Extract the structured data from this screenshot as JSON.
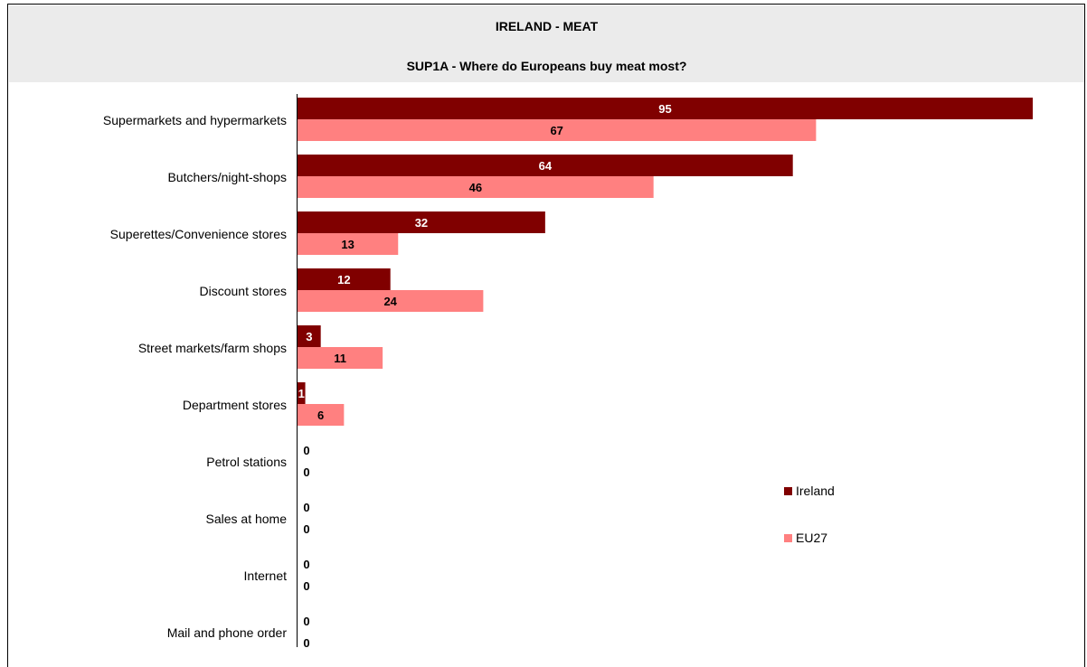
{
  "header": {
    "title": "IRELAND - MEAT",
    "subtitle": "SUP1A - Where do Europeans buy meat most?"
  },
  "chart_data": {
    "type": "bar",
    "orientation": "horizontal",
    "title": "IRELAND - MEAT",
    "subtitle": "SUP1A - Where do Europeans buy meat most?",
    "categories": [
      "Supermarkets and hypermarkets",
      "Butchers/night-shops",
      "Superettes/Convenience stores",
      "Discount stores",
      "Street markets/farm shops",
      "Department stores",
      "Petrol stations",
      "Sales at home",
      "Internet",
      "Mail and phone order"
    ],
    "series": [
      {
        "name": "Ireland",
        "color": "#800000",
        "values": [
          95,
          64,
          32,
          12,
          3,
          1,
          0,
          0,
          0,
          0
        ]
      },
      {
        "name": "EU27",
        "color": "#ff8080",
        "values": [
          67,
          46,
          13,
          24,
          11,
          6,
          0,
          0,
          0,
          0
        ]
      }
    ],
    "xlim": [
      0,
      95
    ],
    "grid": false,
    "legend_position": "right"
  }
}
